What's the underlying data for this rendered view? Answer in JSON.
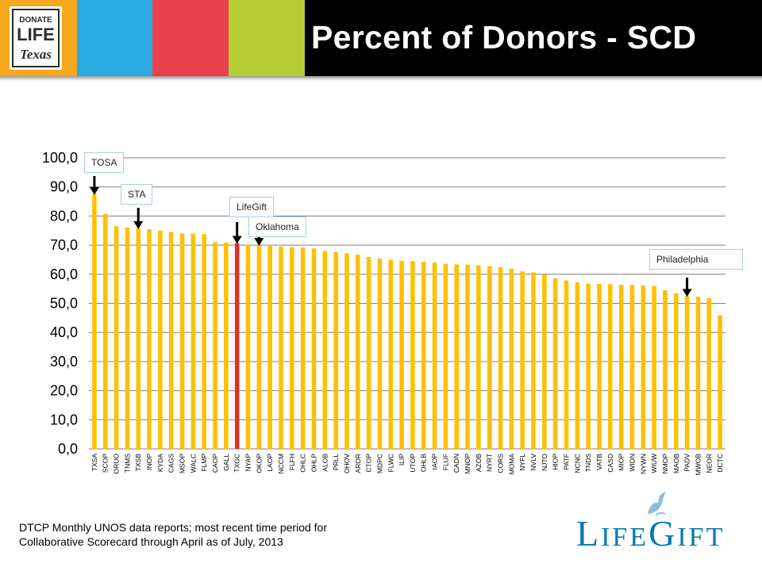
{
  "header": {
    "title": "Percent of Donors - SCD",
    "colors": {
      "orange": "#f6a71c",
      "blue": "#29abe2",
      "red": "#e8414b",
      "green": "#b5cc33",
      "bar": "#ffc000",
      "highlight": "#e42c2c"
    }
  },
  "logo_dlt": {
    "line1": "DONATE",
    "line2": "LIFE",
    "line3": "Texas"
  },
  "callouts": {
    "tosa": "TOSA",
    "sta": "STA",
    "lifegift": "LifeGift",
    "oklahoma": "Oklahoma",
    "philadelphia": "Philadelphia"
  },
  "source_note": "DTCP Monthly UNOS data reports; most recent time period for Collaborative Scorecard through April as of July, 2013",
  "lifegift_logo": {
    "text_part1": "L",
    "text_part2": "IFE",
    "text_part3": "G",
    "text_part4": "IFT"
  },
  "chart_data": {
    "type": "bar",
    "title": "Percent of Donors - SCD",
    "ylim": [
      0,
      100
    ],
    "yticks": [
      "0,0",
      "10,0",
      "20,0",
      "30,0",
      "40,0",
      "50,0",
      "60,0",
      "70,0",
      "80,0",
      "90,0",
      "100,0"
    ],
    "grid": true,
    "highlight_category": "TXGC",
    "categories": [
      "TXSA",
      "SCOP",
      "ORUO",
      "TNMS",
      "TXSB",
      "INOP",
      "KYDA",
      "CAGS",
      "MSOP",
      "WALC",
      "FLMP",
      "CAOP",
      "GALL",
      "TXGC",
      "NYAP",
      "OKOP",
      "LAOP",
      "NCCM",
      "FLFH",
      "OHLC",
      "OHLP",
      "ALOB",
      "PRLL",
      "OHOV",
      "AROR",
      "CTOP",
      "MDPC",
      "FLWC",
      "ILIP",
      "UTOP",
      "OHLB",
      "IAOP",
      "FLUF",
      "CADN",
      "MNOP",
      "AZOB",
      "NYRT",
      "CORS",
      "MOMA",
      "NYFL",
      "NVLV",
      "NJTO",
      "HIOP",
      "PATF",
      "NCNC",
      "TNDS",
      "VATB",
      "CASD",
      "MIOP",
      "WIDN",
      "NYWN",
      "WIUW",
      "NMOP",
      "MAOB",
      "PADV",
      "MWOB",
      "NEOR",
      "DCTC"
    ],
    "values": [
      87.5,
      80.7,
      76.5,
      76.0,
      75.8,
      75.5,
      75.0,
      74.5,
      74.0,
      74.0,
      73.8,
      71.0,
      70.9,
      70.7,
      70.2,
      70.0,
      69.7,
      69.5,
      69.3,
      69.2,
      68.9,
      68.0,
      67.6,
      67.2,
      66.7,
      65.9,
      65.4,
      65.0,
      64.6,
      64.5,
      64.3,
      64.0,
      63.6,
      63.4,
      63.3,
      63.1,
      62.7,
      62.4,
      61.9,
      61.0,
      60.7,
      60.0,
      58.6,
      57.9,
      57.2,
      56.8,
      56.7,
      56.6,
      56.4,
      56.3,
      56.2,
      56.0,
      54.5,
      53.4,
      52.5,
      52.3,
      51.8,
      45.9
    ]
  }
}
